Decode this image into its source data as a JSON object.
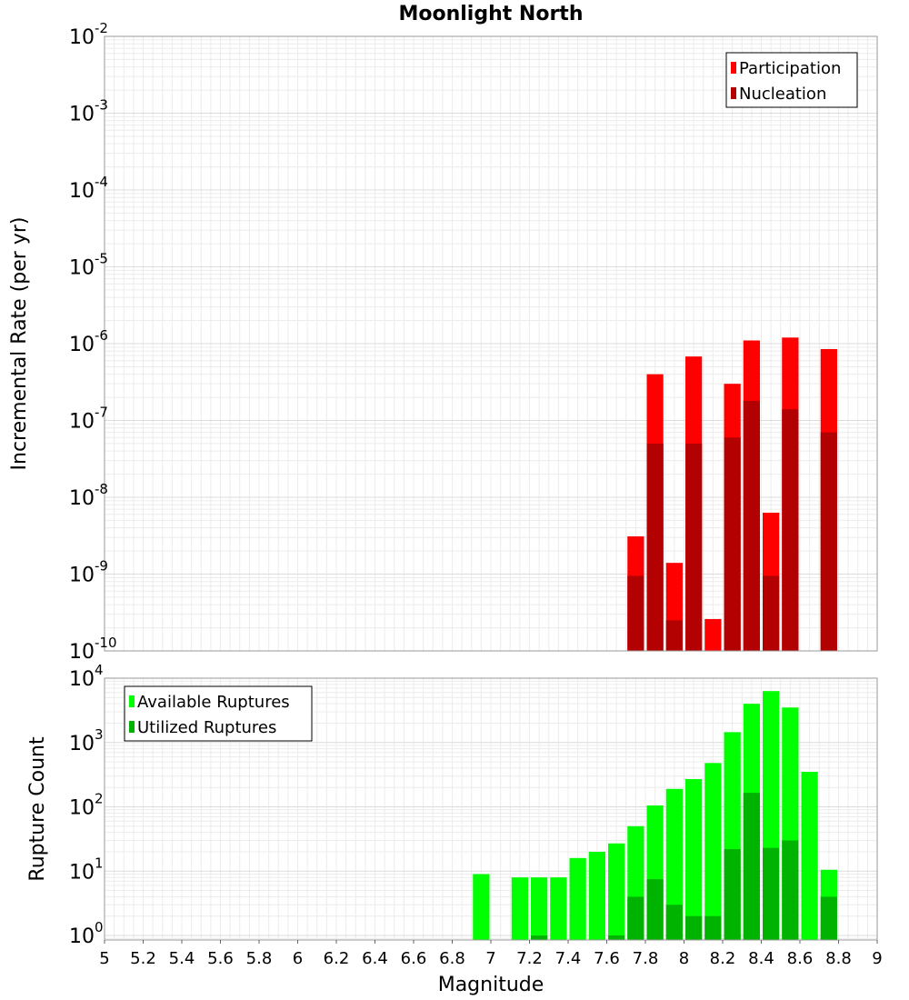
{
  "title": "Moonlight North",
  "chart_data": [
    {
      "type": "bar",
      "panel": "top",
      "ylabel": "Incremental Rate (per yr)",
      "xlabel": "",
      "yscale": "log",
      "ylim": [
        1e-10,
        0.01
      ],
      "xlim": [
        5,
        9
      ],
      "grid": true,
      "legend_position": "top-right",
      "y_ticks": [
        {
          "base": "10",
          "exp": "-10",
          "value": 1e-10
        },
        {
          "base": "10",
          "exp": "-9",
          "value": 1e-09
        },
        {
          "base": "10",
          "exp": "-8",
          "value": 1e-08
        },
        {
          "base": "10",
          "exp": "-7",
          "value": 1e-07
        },
        {
          "base": "10",
          "exp": "-6",
          "value": 1e-06
        },
        {
          "base": "10",
          "exp": "-5",
          "value": 1e-05
        },
        {
          "base": "10",
          "exp": "-4",
          "value": 0.0001
        },
        {
          "base": "10",
          "exp": "-3",
          "value": 0.001
        },
        {
          "base": "10",
          "exp": "-2",
          "value": 0.01
        }
      ],
      "series": [
        {
          "name": "Participation",
          "color": "#ff0000",
          "points": [
            {
              "x": 7.75,
              "y": 3.1e-09
            },
            {
              "x": 7.85,
              "y": 4e-07
            },
            {
              "x": 7.95,
              "y": 1.4e-09
            },
            {
              "x": 8.05,
              "y": 6.8e-07
            },
            {
              "x": 8.15,
              "y": 2.6e-10
            },
            {
              "x": 8.25,
              "y": 3e-07
            },
            {
              "x": 8.35,
              "y": 1.1e-06
            },
            {
              "x": 8.45,
              "y": 6.3e-09
            },
            {
              "x": 8.55,
              "y": 1.2e-06
            },
            {
              "x": 8.75,
              "y": 8.5e-07
            }
          ]
        },
        {
          "name": "Nucleation",
          "color": "#b30000",
          "points": [
            {
              "x": 7.75,
              "y": 9.5e-10
            },
            {
              "x": 7.85,
              "y": 5e-08
            },
            {
              "x": 7.95,
              "y": 2.5e-10
            },
            {
              "x": 8.05,
              "y": 5e-08
            },
            {
              "x": 8.15,
              "y": 1e-10
            },
            {
              "x": 8.25,
              "y": 6e-08
            },
            {
              "x": 8.35,
              "y": 1.8e-07
            },
            {
              "x": 8.45,
              "y": 9.5e-10
            },
            {
              "x": 8.55,
              "y": 1.4e-07
            },
            {
              "x": 8.75,
              "y": 7e-08
            }
          ]
        }
      ]
    },
    {
      "type": "bar",
      "panel": "bottom",
      "ylabel": "Rupture Count",
      "xlabel": "Magnitude",
      "yscale": "log",
      "ylim": [
        0.85,
        10000
      ],
      "xlim": [
        5,
        9
      ],
      "grid": true,
      "legend_position": "top-left",
      "x_ticks": [
        "5",
        "5.2",
        "5.4",
        "5.6",
        "5.8",
        "6",
        "6.2",
        "6.4",
        "6.6",
        "6.8",
        "7",
        "7.2",
        "7.4",
        "7.6",
        "7.8",
        "8",
        "8.2",
        "8.4",
        "8.6",
        "8.8",
        "9"
      ],
      "y_ticks": [
        {
          "base": "10",
          "exp": "0",
          "value": 1
        },
        {
          "base": "10",
          "exp": "1",
          "value": 10
        },
        {
          "base": "10",
          "exp": "2",
          "value": 100
        },
        {
          "base": "10",
          "exp": "3",
          "value": 1000
        },
        {
          "base": "10",
          "exp": "4",
          "value": 10000
        }
      ],
      "series": [
        {
          "name": "Available Ruptures",
          "color": "#00ff00",
          "points": [
            {
              "x": 6.95,
              "y": 9
            },
            {
              "x": 7.15,
              "y": 8
            },
            {
              "x": 7.25,
              "y": 8
            },
            {
              "x": 7.35,
              "y": 8
            },
            {
              "x": 7.45,
              "y": 16
            },
            {
              "x": 7.55,
              "y": 20
            },
            {
              "x": 7.65,
              "y": 27
            },
            {
              "x": 7.75,
              "y": 50
            },
            {
              "x": 7.85,
              "y": 105
            },
            {
              "x": 7.95,
              "y": 190
            },
            {
              "x": 8.05,
              "y": 270
            },
            {
              "x": 8.15,
              "y": 480
            },
            {
              "x": 8.25,
              "y": 1450
            },
            {
              "x": 8.35,
              "y": 4000
            },
            {
              "x": 8.45,
              "y": 6300
            },
            {
              "x": 8.55,
              "y": 3500
            },
            {
              "x": 8.65,
              "y": 350
            },
            {
              "x": 8.75,
              "y": 10.5
            }
          ]
        },
        {
          "name": "Utilized Ruptures",
          "color": "#00b300",
          "points": [
            {
              "x": 7.25,
              "y": 1
            },
            {
              "x": 7.65,
              "y": 1
            },
            {
              "x": 7.75,
              "y": 4
            },
            {
              "x": 7.85,
              "y": 7.5
            },
            {
              "x": 7.95,
              "y": 3
            },
            {
              "x": 8.05,
              "y": 2
            },
            {
              "x": 8.15,
              "y": 2
            },
            {
              "x": 8.25,
              "y": 22
            },
            {
              "x": 8.35,
              "y": 165
            },
            {
              "x": 8.45,
              "y": 23
            },
            {
              "x": 8.55,
              "y": 30
            },
            {
              "x": 8.75,
              "y": 4
            }
          ]
        }
      ]
    }
  ]
}
